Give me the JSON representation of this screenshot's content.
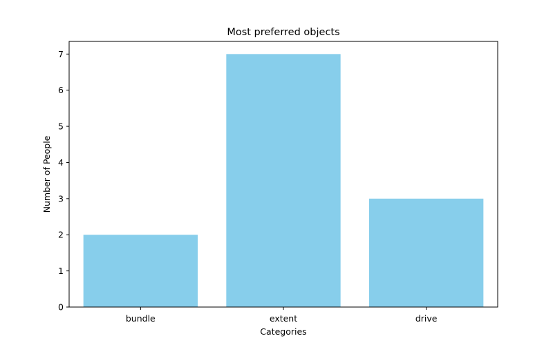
{
  "chart_data": {
    "type": "bar",
    "title": "Most preferred objects",
    "xlabel": "Categories",
    "ylabel": "Number of People",
    "categories": [
      "bundle",
      "extent",
      "drive"
    ],
    "values": [
      2,
      7,
      3
    ],
    "ylim": [
      0,
      7.35
    ],
    "yticks": [
      0,
      1,
      2,
      3,
      4,
      5,
      6,
      7
    ],
    "bar_color": "#87ceeb",
    "grid": false,
    "legend": "none"
  }
}
